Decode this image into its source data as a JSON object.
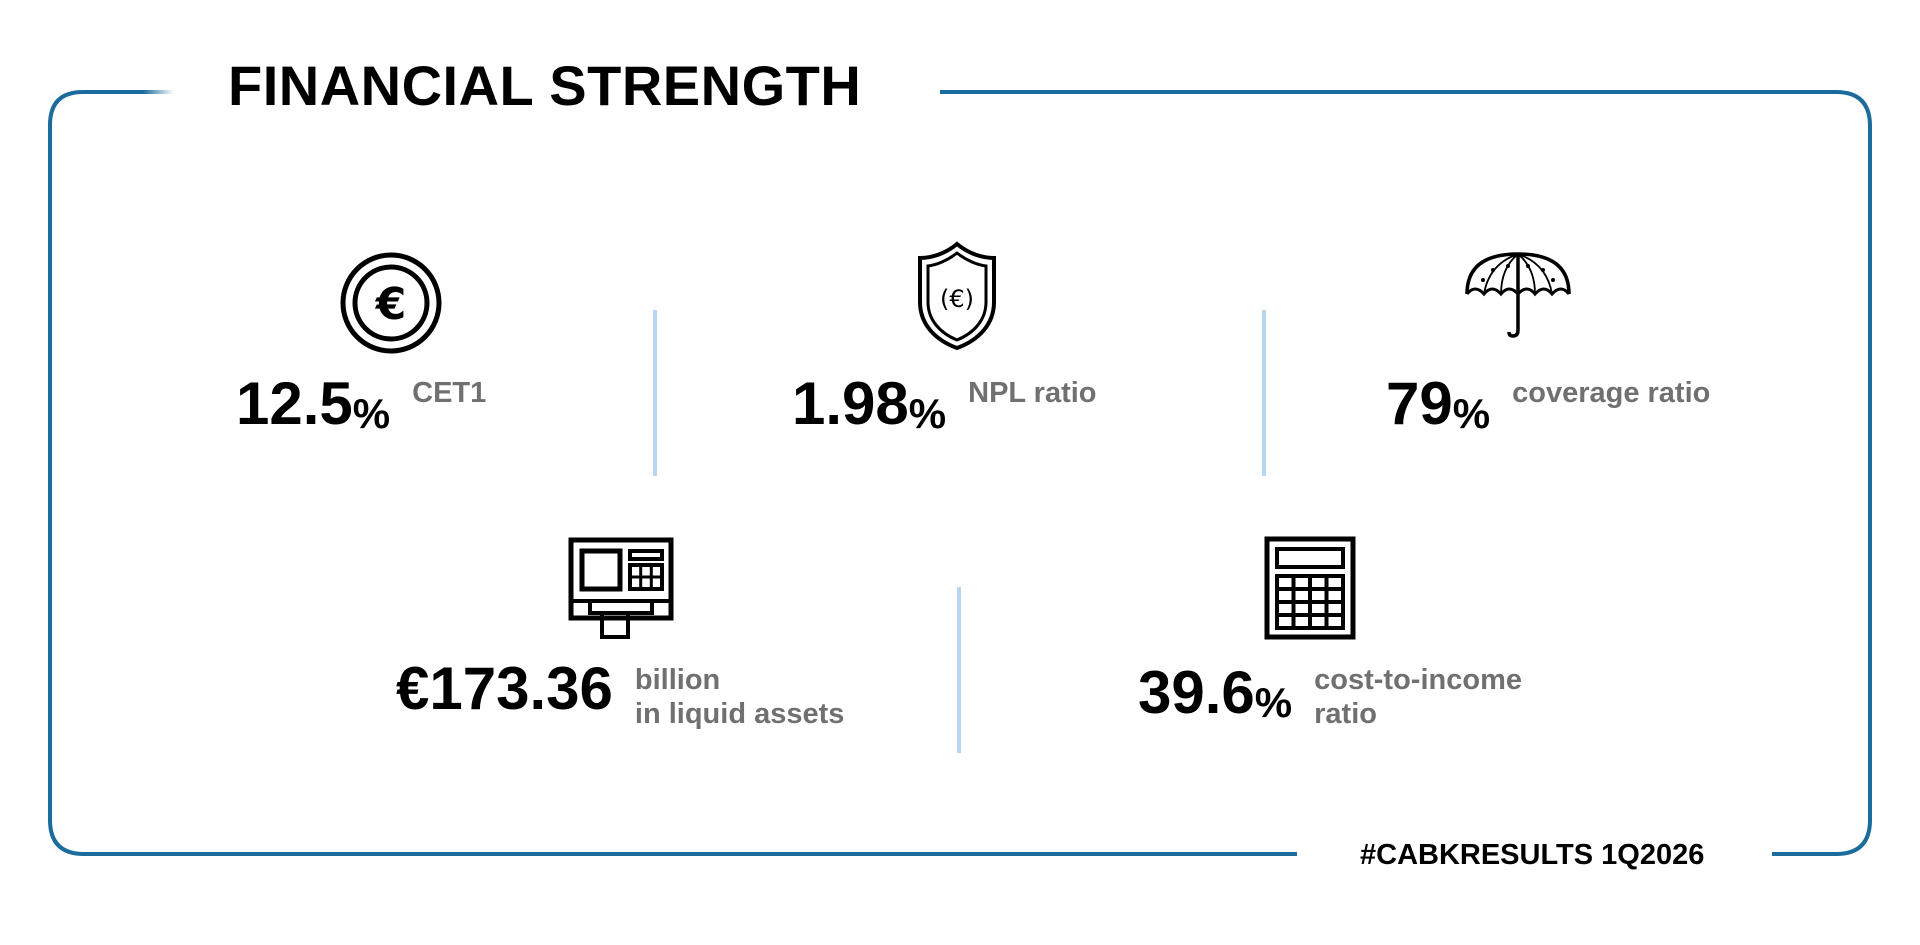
{
  "title": "FINANCIAL STRENGTH",
  "hashtag": "#CABKRESULTS 1Q2026",
  "colors": {
    "frame": "#1b6c9c",
    "divider": "#b9d5f2",
    "value_text": "#000000",
    "label_text": "#707070"
  },
  "metrics": [
    {
      "icon": "euro-coin-icon",
      "value": "12.5",
      "unit": "%",
      "label_line1": "CET1",
      "label_line2": ""
    },
    {
      "icon": "euro-shield-icon",
      "value": "1.98",
      "unit": "%",
      "label_line1": "NPL ratio",
      "label_line2": ""
    },
    {
      "icon": "umbrella-icon",
      "value": "79",
      "unit": "%",
      "label_line1": "coverage ratio",
      "label_line2": ""
    },
    {
      "icon": "atm-machine-icon",
      "value": "€173.36",
      "unit": "",
      "label_line1": "billion",
      "label_line2": "in liquid assets"
    },
    {
      "icon": "calculator-icon",
      "value": "39.6",
      "unit": "%",
      "label_line1": "cost-to-income",
      "label_line2": "ratio"
    }
  ]
}
